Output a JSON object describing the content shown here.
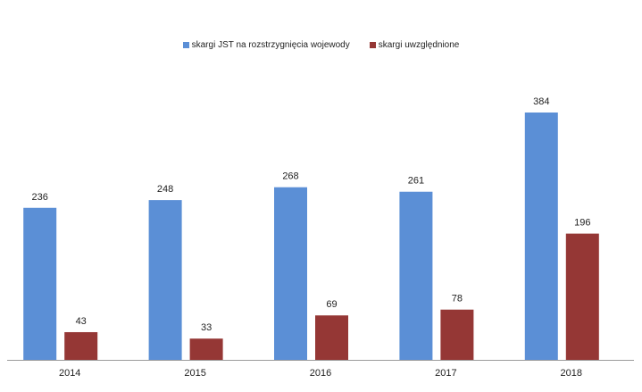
{
  "chart_data": {
    "type": "bar",
    "categories": [
      "2014",
      "2015",
      "2016",
      "2017",
      "2018"
    ],
    "series": [
      {
        "name": "skargi JST na rozstrzygnięcia  wojewody",
        "color": "#5B8FD6",
        "values": [
          236,
          248,
          268,
          261,
          384
        ]
      },
      {
        "name": "skargi uwzględnione",
        "color": "#953735",
        "values": [
          43,
          33,
          69,
          78,
          196
        ]
      }
    ],
    "title": "",
    "xlabel": "",
    "ylabel": "",
    "ylim": [
      0,
      400
    ],
    "grid": false,
    "legend_position": "top-center",
    "data_labels": true
  }
}
